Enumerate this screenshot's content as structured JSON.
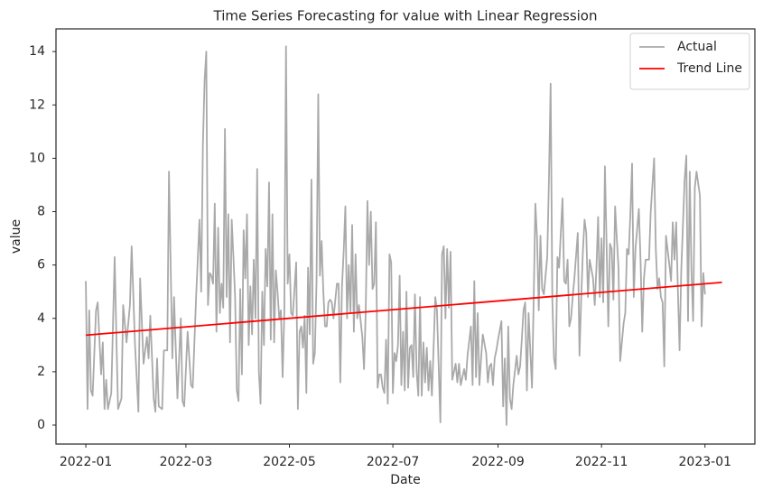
{
  "chart_data": {
    "type": "line",
    "title": "Time Series Forecasting for value with Linear Regression",
    "xlabel": "Date",
    "ylabel": "value",
    "xlim": [
      -17.6,
      394.4
    ],
    "ylim": [
      -0.71,
      14.85
    ],
    "xticks": [
      {
        "value": 0,
        "label": "2022-01"
      },
      {
        "value": 59,
        "label": "2022-03"
      },
      {
        "value": 120,
        "label": "2022-05"
      },
      {
        "value": 181,
        "label": "2022-07"
      },
      {
        "value": 243,
        "label": "2022-09"
      },
      {
        "value": 304,
        "label": "2022-11"
      },
      {
        "value": 365,
        "label": "2023-01"
      }
    ],
    "yticks": [
      0,
      2,
      4,
      6,
      8,
      10,
      12,
      14
    ],
    "grid": false,
    "legend": "upper right",
    "series": [
      {
        "name": "Actual",
        "color": "#a9a9a9",
        "x": [
          0,
          1,
          2,
          3,
          4,
          6,
          7,
          9,
          10,
          11,
          12,
          13,
          15,
          17,
          18,
          19,
          21,
          22,
          24,
          26,
          27,
          29,
          31,
          32,
          34,
          36,
          37,
          38,
          40,
          41,
          42,
          43,
          45,
          46,
          48,
          49,
          51,
          52,
          54,
          56,
          57,
          58,
          60,
          62,
          63,
          65,
          67,
          68,
          69,
          70,
          71,
          72,
          73,
          74,
          75,
          76,
          77,
          78,
          79,
          80,
          81,
          82,
          83,
          84,
          85,
          86,
          87,
          88,
          89,
          90,
          91,
          92,
          93,
          94,
          95,
          96,
          97,
          98,
          99,
          100,
          101,
          102,
          103,
          104,
          105,
          106,
          107,
          108,
          109,
          110,
          111,
          112,
          113,
          114,
          115,
          116,
          117,
          118,
          119,
          120,
          121,
          122,
          123,
          124,
          125,
          126,
          127,
          128,
          129,
          130,
          131,
          132,
          133,
          134,
          135,
          136,
          137,
          138,
          139,
          140,
          141,
          142,
          143,
          144,
          145,
          146,
          148,
          149,
          150,
          151,
          152,
          153,
          154,
          155,
          156,
          157,
          158,
          159,
          160,
          161,
          162,
          163,
          164,
          165,
          166,
          167,
          168,
          169,
          170,
          171,
          172,
          173,
          174,
          175,
          176,
          177,
          178,
          179,
          180,
          181,
          182,
          183,
          184,
          185,
          186,
          187,
          188,
          189,
          190,
          191,
          192,
          193,
          194,
          195,
          196,
          197,
          198,
          199,
          200,
          201,
          202,
          203,
          204,
          205,
          206,
          207,
          209,
          210,
          211,
          212,
          213,
          214,
          215,
          216,
          218,
          219,
          220,
          221,
          222,
          223,
          224,
          225,
          227,
          228,
          229,
          230,
          231,
          232,
          233,
          234,
          236,
          237,
          238,
          239,
          240,
          241,
          242,
          243,
          245,
          246,
          247,
          248,
          249,
          250,
          251,
          252,
          254,
          255,
          256,
          257,
          258,
          259,
          260,
          261,
          263,
          264,
          265,
          266,
          267,
          268,
          269,
          270,
          272,
          273,
          274,
          275,
          276,
          277,
          278,
          279,
          281,
          282,
          283,
          284,
          285,
          286,
          287,
          288,
          290,
          291,
          292,
          293,
          294,
          295,
          296,
          297,
          299,
          300,
          301,
          302,
          303,
          304,
          305,
          306,
          308,
          309,
          310,
          311,
          312,
          313,
          314,
          315,
          317,
          318,
          319,
          320,
          321,
          322,
          323,
          324,
          326,
          327,
          328,
          329,
          330,
          331,
          332,
          333,
          335,
          336,
          337,
          338,
          339,
          340,
          341,
          342,
          344,
          345,
          346,
          347,
          348,
          349,
          350,
          351,
          353,
          354,
          355,
          356,
          357,
          358,
          359,
          360,
          362,
          363,
          364,
          365
        ],
        "values": [
          5.4,
          0.6,
          4.3,
          1.3,
          1.1,
          4.3,
          4.6,
          1.9,
          3.1,
          0.6,
          1.7,
          0.6,
          1.2,
          6.3,
          3.3,
          0.6,
          1.0,
          4.5,
          3.1,
          4.5,
          6.7,
          3.0,
          0.5,
          5.5,
          2.3,
          3.3,
          2.5,
          4.1,
          1.0,
          0.5,
          2.5,
          0.7,
          0.6,
          2.8,
          2.8,
          9.5,
          2.5,
          4.8,
          1.0,
          4.0,
          0.9,
          0.7,
          3.5,
          1.5,
          1.4,
          4.8,
          7.7,
          5.0,
          10.5,
          12.9,
          14.0,
          4.5,
          5.7,
          5.6,
          5.3,
          8.3,
          3.5,
          7.4,
          4.2,
          5.3,
          4.4,
          11.1,
          4.8,
          7.9,
          3.1,
          7.7,
          6.3,
          4.8,
          1.3,
          0.9,
          5.1,
          1.9,
          7.3,
          5.5,
          7.9,
          3.0,
          5.2,
          3.4,
          6.2,
          4.0,
          9.6,
          2.0,
          0.8,
          5.0,
          3.0,
          6.6,
          5.2,
          9.1,
          3.2,
          7.9,
          3.1,
          5.8,
          5.0,
          4.0,
          4.3,
          1.8,
          4.2,
          14.2,
          5.3,
          6.4,
          4.2,
          4.1,
          5.1,
          6.1,
          0.6,
          3.5,
          3.7,
          2.9,
          4.1,
          1.2,
          5.9,
          3.4,
          9.2,
          2.3,
          2.7,
          5.4,
          12.4,
          5.6,
          6.9,
          5.0,
          3.7,
          3.7,
          4.6,
          4.7,
          4.6,
          4.0,
          5.3,
          5.3,
          1.6,
          5.2,
          6.5,
          8.2,
          4.0,
          6.0,
          4.2,
          7.5,
          3.5,
          6.4,
          4.0,
          4.5,
          3.9,
          3.3,
          2.1,
          4.3,
          8.4,
          6.0,
          8.0,
          5.1,
          5.3,
          7.6,
          1.4,
          1.9,
          1.9,
          1.4,
          1.2,
          3.2,
          0.8,
          6.4,
          6.1,
          1.2,
          2.7,
          2.4,
          3.0,
          5.6,
          1.5,
          3.5,
          1.3,
          5.0,
          1.4,
          2.9,
          3.0,
          1.8,
          4.9,
          2.0,
          1.1,
          4.8,
          1.1,
          3.1,
          1.6,
          2.9,
          1.3,
          2.4,
          1.1,
          2.9,
          4.8,
          4.3,
          0.1,
          6.4,
          6.7,
          4.0,
          6.6,
          4.4,
          6.5,
          1.7,
          2.3,
          1.6,
          2.3,
          1.5,
          1.8,
          2.1,
          1.7,
          2.6,
          3.7,
          1.5,
          5.4,
          1.8,
          4.2,
          1.5,
          2.5,
          3.4,
          2.7,
          1.6,
          2.2,
          2.3,
          1.5,
          2.5,
          2.8,
          3.2,
          3.9,
          0.7,
          2.5,
          0.0,
          3.7,
          1.0,
          0.6,
          1.5,
          2.6,
          1.9,
          2.2,
          3.2,
          4.3,
          4.6,
          1.3,
          4.2,
          1.4,
          4.7,
          8.3,
          7.0,
          4.3,
          7.1,
          5.1,
          4.9,
          6.3,
          9.2,
          12.8,
          4.7,
          2.5,
          2.1,
          6.3,
          5.9,
          8.5,
          5.4,
          5.3,
          6.2,
          3.7,
          4.0,
          4.8,
          5.5,
          7.2,
          2.6,
          4.7,
          6.5,
          7.7,
          7.2,
          4.8,
          6.2,
          5.5,
          4.5,
          5.9,
          7.8,
          4.8,
          7.0,
          4.6,
          9.7,
          3.7,
          6.8,
          6.6,
          4.7,
          8.2,
          7.0,
          5.9,
          2.4,
          3.8,
          4.2,
          6.6,
          6.4,
          7.9,
          9.8,
          4.8,
          6.6,
          8.1,
          6.2,
          3.5,
          5.5,
          6.2,
          6.2,
          6.2,
          8.0,
          10.0,
          6.6,
          5.1,
          5.5,
          4.8,
          4.6,
          2.2,
          7.1,
          6.0,
          5.4,
          7.6,
          6.2,
          7.6,
          5.1,
          2.8,
          5.8,
          9.2,
          10.1,
          3.9,
          9.5,
          5.8,
          3.9,
          8.9,
          9.5,
          8.6,
          3.7,
          5.7,
          4.9
        ]
      },
      {
        "name": "Trend Line",
        "color": "#ff0000",
        "x": [
          0,
          375
        ],
        "values": [
          3.37,
          5.35
        ]
      }
    ]
  }
}
